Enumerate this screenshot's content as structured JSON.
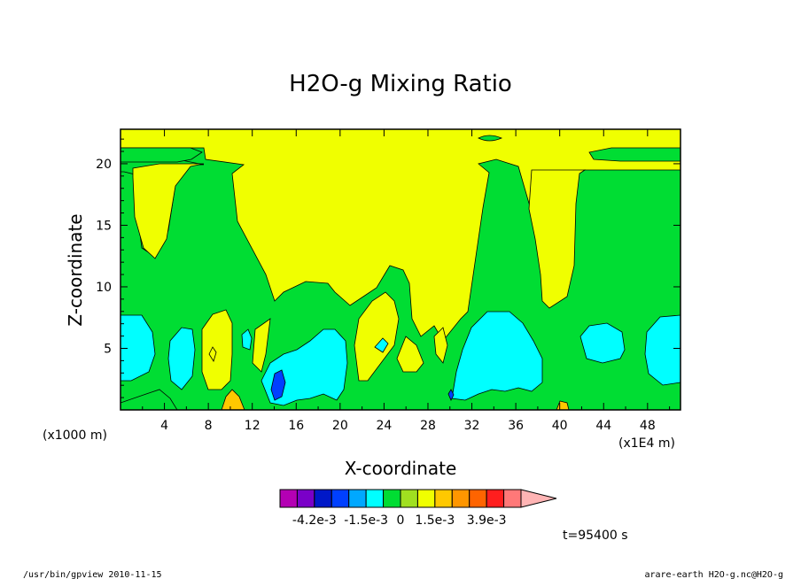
{
  "chart_data": {
    "type": "heatmap",
    "title": "H2O-g Mixing Ratio",
    "xlabel": "X-coordinate",
    "ylabel": "Z-coordinate",
    "x_unit_label": "(x1000 m)",
    "x_scale_label": "(x1E4 m)",
    "x_ticks": [
      4,
      8,
      12,
      16,
      20,
      24,
      28,
      32,
      36,
      40,
      44,
      48
    ],
    "y_ticks": [
      5,
      10,
      15,
      20
    ],
    "xlim": [
      0,
      51
    ],
    "ylim": [
      0,
      22.8
    ],
    "colorbar": {
      "colors": [
        "#b400b4",
        "#7a00c8",
        "#0018c8",
        "#0040ff",
        "#00a8ff",
        "#00ffff",
        "#00dd33",
        "#a0e020",
        "#f0ff00",
        "#ffc800",
        "#ff9600",
        "#ff6400",
        "#ff1e1e",
        "#ff7878",
        "#ffb4b4"
      ],
      "labels": [
        "-4.2e-3",
        "-1.5e-3",
        "0",
        "1.5e-3",
        "3.9e-3"
      ]
    },
    "field_levels_present": [
      {
        "level": "negative-strong",
        "color": "#0040ff"
      },
      {
        "level": "negative",
        "color": "#00ffff"
      },
      {
        "level": "near-zero",
        "color": "#00dd33"
      },
      {
        "level": "zero",
        "color": "#f0ff00"
      },
      {
        "level": "positive-small",
        "color": "#ffc800"
      }
    ],
    "time_label": "t=95400 s"
  },
  "footer": {
    "left": "/usr/bin/gpview  2010-11-15",
    "right": "arare-earth_H2O-g.nc@H2O-g"
  }
}
